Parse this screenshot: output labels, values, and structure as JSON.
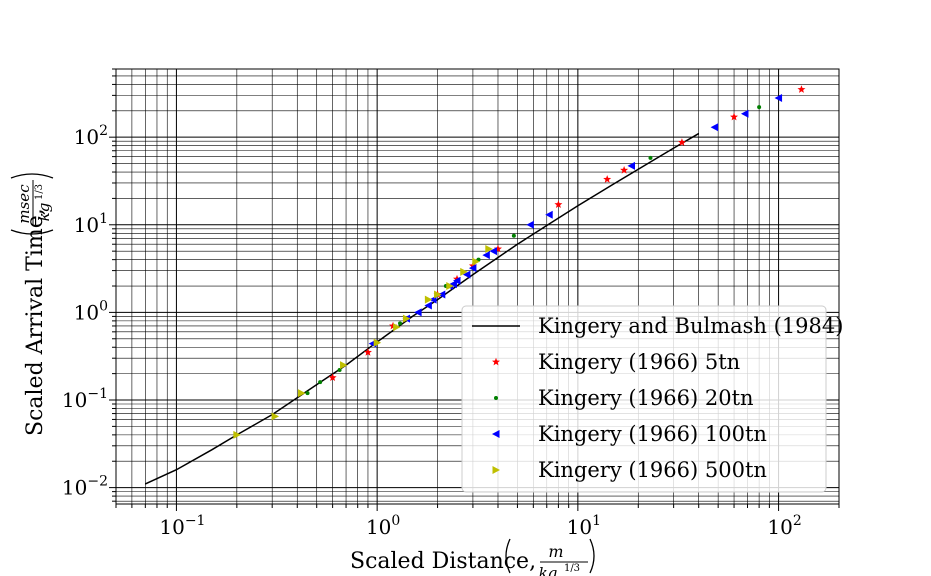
{
  "chart_data": {
    "type": "scatter",
    "title": "",
    "xlabel": "Scaled Distance,",
    "xlabel_unit": {
      "num": "m",
      "den": "kg",
      "den_exp": "1/3"
    },
    "ylabel": "Scaled Arrival Time,",
    "ylabel_unit": {
      "num": "msec",
      "den": "kg",
      "den_exp": "1/3"
    },
    "xscale": "log",
    "yscale": "log",
    "xlim": [
      0.05,
      200
    ],
    "ylim": [
      0.0065,
      600
    ],
    "grid": true,
    "legend_position": "lower-right",
    "x_ticks": [
      {
        "value": 0.1,
        "base": "10",
        "exp": "−1"
      },
      {
        "value": 1,
        "base": "10",
        "exp": "0"
      },
      {
        "value": 10,
        "base": "10",
        "exp": "1"
      },
      {
        "value": 100,
        "base": "10",
        "exp": "2"
      }
    ],
    "y_ticks": [
      {
        "value": 0.01,
        "base": "10",
        "exp": "−2"
      },
      {
        "value": 0.1,
        "base": "10",
        "exp": "−1"
      },
      {
        "value": 1,
        "base": "10",
        "exp": "0"
      },
      {
        "value": 10,
        "base": "10",
        "exp": "1"
      },
      {
        "value": 100,
        "base": "10",
        "exp": "2"
      }
    ],
    "series": [
      {
        "name": "Kingery and Bulmash (1984)",
        "kind": "line",
        "color": "#000000",
        "x": [
          0.07,
          0.1,
          0.15,
          0.2,
          0.3,
          0.5,
          0.7,
          1.0,
          1.5,
          2.0,
          3.0,
          5.0,
          7.0,
          10.0,
          15.0,
          20.0,
          30.0,
          40.0
        ],
        "y": [
          0.011,
          0.016,
          0.027,
          0.04,
          0.068,
          0.15,
          0.25,
          0.46,
          0.9,
          1.4,
          2.7,
          6.0,
          9.8,
          16.5,
          29.0,
          43.0,
          75.0,
          110.0
        ]
      },
      {
        "name": "Kingery (1966) 5tn",
        "kind": "marker",
        "marker": "star",
        "color": "#ff0000",
        "x": [
          0.6,
          0.9,
          1.2,
          2.0,
          2.5,
          3.0,
          4.0,
          8.0,
          14.0,
          17.0,
          33.0,
          60.0,
          130.0
        ],
        "y": [
          0.18,
          0.35,
          0.7,
          1.6,
          2.4,
          3.4,
          5.3,
          17.0,
          33.0,
          42.0,
          87.0,
          170.0,
          350.0
        ]
      },
      {
        "name": "Kingery (1966) 20tn",
        "kind": "marker",
        "marker": "dot",
        "color": "#008000",
        "x": [
          0.45,
          0.52,
          0.65,
          1.3,
          2.2,
          3.2,
          4.8,
          23.0,
          80.0
        ],
        "y": [
          0.12,
          0.16,
          0.22,
          0.75,
          2.0,
          4.0,
          7.5,
          58.0,
          220.0
        ]
      },
      {
        "name": "Kingery (1966) 100tn",
        "kind": "marker",
        "marker": "triangle-left",
        "color": "#0000ff",
        "x": [
          0.95,
          1.4,
          1.6,
          1.8,
          1.9,
          2.1,
          2.3,
          2.4,
          2.5,
          2.8,
          3.0,
          3.5,
          3.8,
          5.8,
          7.2,
          18.5,
          48.0,
          68.0,
          100.0
        ],
        "y": [
          0.44,
          0.85,
          1.0,
          1.2,
          1.4,
          1.6,
          2.0,
          2.1,
          2.3,
          2.7,
          3.2,
          4.5,
          5.0,
          10.0,
          13.0,
          47.0,
          130.0,
          185.0,
          280.0
        ]
      },
      {
        "name": "Kingery (1966) 500tn",
        "kind": "marker",
        "marker": "triangle-right",
        "color": "#bfbf00",
        "x": [
          0.2,
          0.31,
          0.42,
          0.68,
          1.0,
          1.25,
          1.4,
          1.8,
          2.0,
          2.3,
          2.7,
          3.1,
          3.6
        ],
        "y": [
          0.04,
          0.065,
          0.12,
          0.25,
          0.45,
          0.68,
          0.85,
          1.4,
          1.6,
          2.0,
          2.9,
          3.8,
          5.3
        ]
      }
    ]
  }
}
